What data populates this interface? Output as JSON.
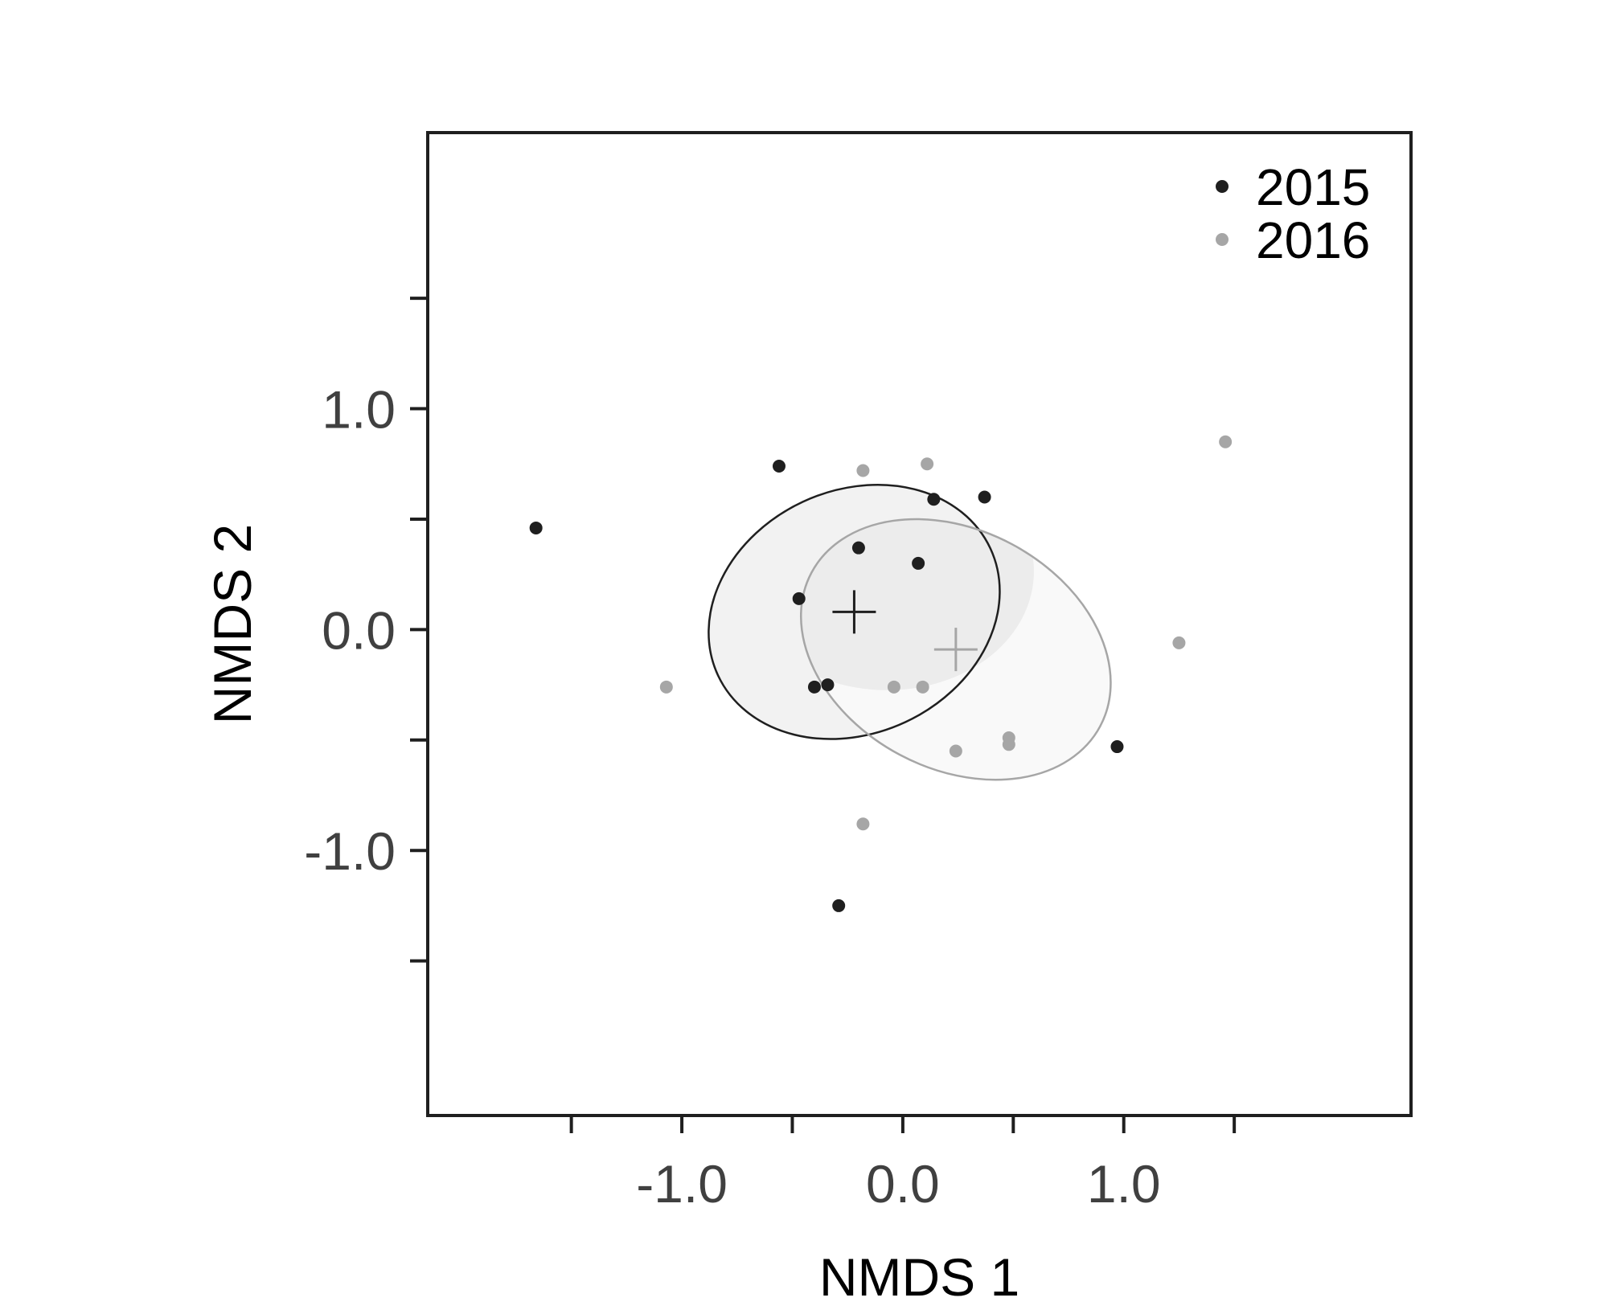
{
  "chart_data": {
    "type": "scatter",
    "title": "",
    "xlabel": "NMDS 1",
    "ylabel": "NMDS 2",
    "xlim": [
      -2.15,
      2.3
    ],
    "ylim": [
      -2.2,
      2.25
    ],
    "x_ticks": [
      -1.5,
      -1.0,
      -0.5,
      0.0,
      0.5,
      1.0,
      1.5
    ],
    "x_tick_labels": [
      {
        "value": -1.0,
        "label": "-1.0"
      },
      {
        "value": 0.0,
        "label": "0.0"
      },
      {
        "value": 1.0,
        "label": "1.0"
      }
    ],
    "y_ticks": [
      1.5,
      1.0,
      0.5,
      0.0,
      -0.5,
      -1.0,
      -1.5
    ],
    "y_tick_labels": [
      {
        "value": 1.0,
        "label": "1.0"
      },
      {
        "value": 0.0,
        "label": "0.0"
      },
      {
        "value": -1.0,
        "label": "-1.0"
      }
    ],
    "grid": false,
    "legend_position": "top-right",
    "series": [
      {
        "name": "2015",
        "color": "#1f1f1f",
        "points": [
          {
            "x": -1.66,
            "y": 0.46
          },
          {
            "x": -0.56,
            "y": 0.74
          },
          {
            "x": -0.2,
            "y": 0.37
          },
          {
            "x": 0.14,
            "y": 0.59
          },
          {
            "x": 0.37,
            "y": 0.6
          },
          {
            "x": 0.07,
            "y": 0.3
          },
          {
            "x": -0.47,
            "y": 0.14
          },
          {
            "x": -0.4,
            "y": -0.26
          },
          {
            "x": -0.34,
            "y": -0.25
          },
          {
            "x": 0.97,
            "y": -0.53
          },
          {
            "x": -0.29,
            "y": -1.25
          }
        ],
        "centroid": {
          "x": -0.22,
          "y": 0.08
        },
        "ellipse": {
          "cx": -0.22,
          "cy": 0.08,
          "rx": 0.68,
          "ry": 0.55,
          "angle_deg": -25,
          "fill": "#f2f2f2",
          "stroke": "#1f1f1f"
        }
      },
      {
        "name": "2016",
        "color": "#a6a6a6",
        "points": [
          {
            "x": -1.07,
            "y": -0.26
          },
          {
            "x": -0.18,
            "y": 0.72
          },
          {
            "x": 0.11,
            "y": 0.75
          },
          {
            "x": 1.46,
            "y": 0.85
          },
          {
            "x": -0.04,
            "y": -0.26
          },
          {
            "x": 0.09,
            "y": -0.26
          },
          {
            "x": 1.25,
            "y": -0.06
          },
          {
            "x": 0.24,
            "y": -0.55
          },
          {
            "x": 0.48,
            "y": -0.49
          },
          {
            "x": 0.48,
            "y": -0.52
          },
          {
            "x": -0.18,
            "y": -0.88
          }
        ],
        "centroid": {
          "x": 0.24,
          "y": -0.09
        },
        "ellipse": {
          "cx": 0.24,
          "cy": -0.09,
          "rx": 0.74,
          "ry": 0.54,
          "angle_deg": 28,
          "fill": "#f9f9f9",
          "stroke": "#a6a6a6"
        }
      }
    ],
    "overlap_fill": "#ececec",
    "axis_color": "#1f1f1f",
    "tick_label_color": "#404040"
  }
}
